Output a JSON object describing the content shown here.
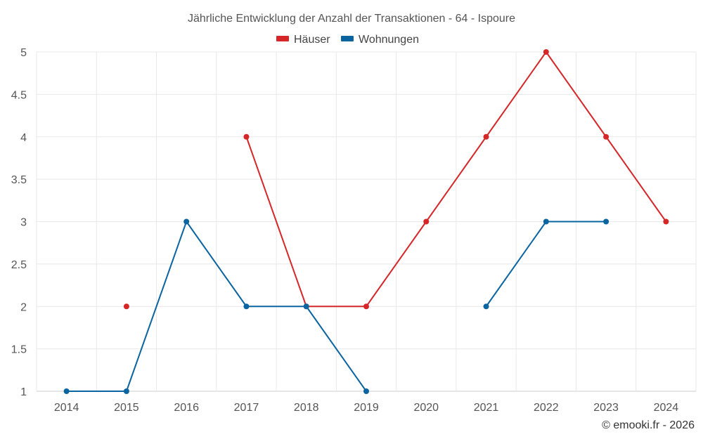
{
  "chart_data": {
    "type": "line",
    "title": "Jährliche Entwicklung der Anzahl der Transaktionen - 64 - Ispoure",
    "categories": [
      "2014",
      "2015",
      "2016",
      "2017",
      "2018",
      "2019",
      "2020",
      "2021",
      "2022",
      "2023",
      "2024"
    ],
    "ylim": [
      1,
      5
    ],
    "yticks": [
      "1",
      "1.5",
      "2",
      "2.5",
      "3",
      "3.5",
      "4",
      "4.5",
      "5"
    ],
    "grid": true,
    "legend_position": "top-center",
    "series": [
      {
        "name": "Häuser",
        "color": "#d62728",
        "values": [
          null,
          2,
          null,
          4,
          2,
          2,
          3,
          4,
          5,
          4,
          3
        ]
      },
      {
        "name": "Wohnungen",
        "color": "#0a64a0",
        "values": [
          1,
          1,
          3,
          2,
          2,
          1,
          null,
          2,
          3,
          3,
          null
        ]
      }
    ],
    "credit": "© emooki.fr - 2026"
  }
}
